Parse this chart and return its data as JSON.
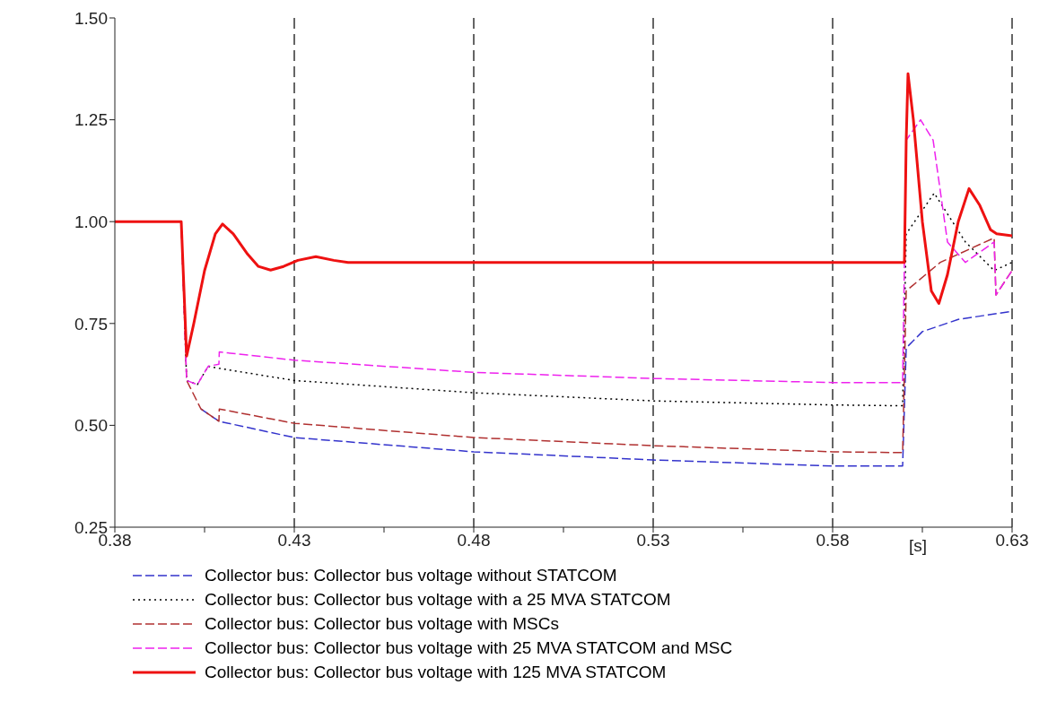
{
  "chart_data": {
    "type": "line",
    "xlabel": "[s]",
    "xlim": [
      0.38,
      0.63
    ],
    "xticks": [
      0.38,
      {
        "value": 0.405,
        "label": null
      },
      0.43,
      {
        "value": 0.455,
        "label": null
      },
      0.48,
      {
        "value": 0.505,
        "label": null
      },
      0.53,
      {
        "value": 0.555,
        "label": null
      },
      0.58,
      {
        "value": 0.605,
        "label": null
      },
      0.63
    ],
    "ylim": [
      0.25,
      1.5
    ],
    "yticks": [
      {
        "value": 0.25,
        "label": "0.25"
      },
      {
        "value": 0.5,
        "label": "0.50"
      },
      {
        "value": 0.75,
        "label": "0.75"
      },
      {
        "value": 1.0,
        "label": "1.00"
      },
      {
        "value": 1.25,
        "label": "1.25"
      },
      {
        "value": 1.5,
        "label": "1.50"
      }
    ],
    "grid": "x",
    "legend": "bottom",
    "marker": "none",
    "series": [
      {
        "name": "Collector bus: Collector bus voltage without STATCOM",
        "color": "#3333cc",
        "line_style": "dashed",
        "x": [
          0.404,
          0.409,
          0.43,
          0.48,
          0.53,
          0.58,
          0.5995,
          0.6005,
          0.605,
          0.615,
          0.63
        ],
        "values": [
          0.54,
          0.51,
          0.47,
          0.435,
          0.415,
          0.4,
          0.4,
          0.69,
          0.73,
          0.76,
          0.78
        ]
      },
      {
        "name": "Collector bus: Collector bus voltage with a 25 MVA STATCOM",
        "color": "#000000",
        "line_style": "dotted",
        "x": [
          0.38,
          0.3985,
          0.4,
          0.403,
          0.406,
          0.409,
          0.43,
          0.48,
          0.53,
          0.58,
          0.5995,
          0.6005,
          0.6083,
          0.617,
          0.625,
          0.63
        ],
        "values": [
          1.0,
          1.0,
          0.61,
          0.6,
          0.645,
          0.64,
          0.61,
          0.58,
          0.56,
          0.55,
          0.548,
          0.97,
          1.07,
          0.95,
          0.88,
          0.9
        ]
      },
      {
        "name": "Collector bus: Collector bus voltage with MSCs",
        "color": "#b03030",
        "line_style": "dashed",
        "x": [
          0.38,
          0.3985,
          0.4,
          0.404,
          0.409,
          0.4091,
          0.43,
          0.48,
          0.53,
          0.58,
          0.5995,
          0.6005,
          0.61,
          0.625,
          0.6255,
          0.63
        ],
        "values": [
          1.0,
          1.0,
          0.61,
          0.54,
          0.51,
          0.54,
          0.505,
          0.47,
          0.45,
          0.435,
          0.433,
          0.83,
          0.9,
          0.96,
          0.82,
          0.88
        ]
      },
      {
        "name": "Collector bus: Collector bus voltage with 25 MVA STATCOM and MSC",
        "color": "#ee22ee",
        "line_style": "dashed",
        "x": [
          0.38,
          0.3985,
          0.4,
          0.403,
          0.406,
          0.409,
          0.4091,
          0.43,
          0.48,
          0.53,
          0.58,
          0.5995,
          0.6005,
          0.6045,
          0.608,
          0.612,
          0.617,
          0.625,
          0.6255,
          0.63
        ],
        "values": [
          1.0,
          1.0,
          0.61,
          0.6,
          0.645,
          0.65,
          0.68,
          0.66,
          0.63,
          0.615,
          0.605,
          0.605,
          1.2,
          1.25,
          1.2,
          0.95,
          0.9,
          0.95,
          0.82,
          0.88
        ]
      },
      {
        "name": "Collector bus: Collector bus voltage with 125 MVA STATCOM",
        "color": "#ee1111",
        "line_style": "solid",
        "x": [
          0.38,
          0.3985,
          0.4,
          0.402,
          0.405,
          0.408,
          0.41,
          0.413,
          0.417,
          0.42,
          0.4234,
          0.427,
          0.431,
          0.436,
          0.441,
          0.445,
          0.5995,
          0.6,
          0.6005,
          0.601,
          0.6025,
          0.605,
          0.6075,
          0.6096,
          0.612,
          0.615,
          0.618,
          0.621,
          0.624,
          0.6257,
          0.63
        ],
        "values": [
          1.0,
          1.0,
          0.67,
          0.75,
          0.88,
          0.97,
          0.994,
          0.97,
          0.92,
          0.89,
          0.881,
          0.89,
          0.905,
          0.914,
          0.905,
          0.9,
          0.9,
          0.9,
          1.2,
          1.363,
          1.25,
          1.0,
          0.83,
          0.799,
          0.87,
          1.0,
          1.081,
          1.04,
          0.98,
          0.97,
          0.965
        ]
      }
    ]
  }
}
